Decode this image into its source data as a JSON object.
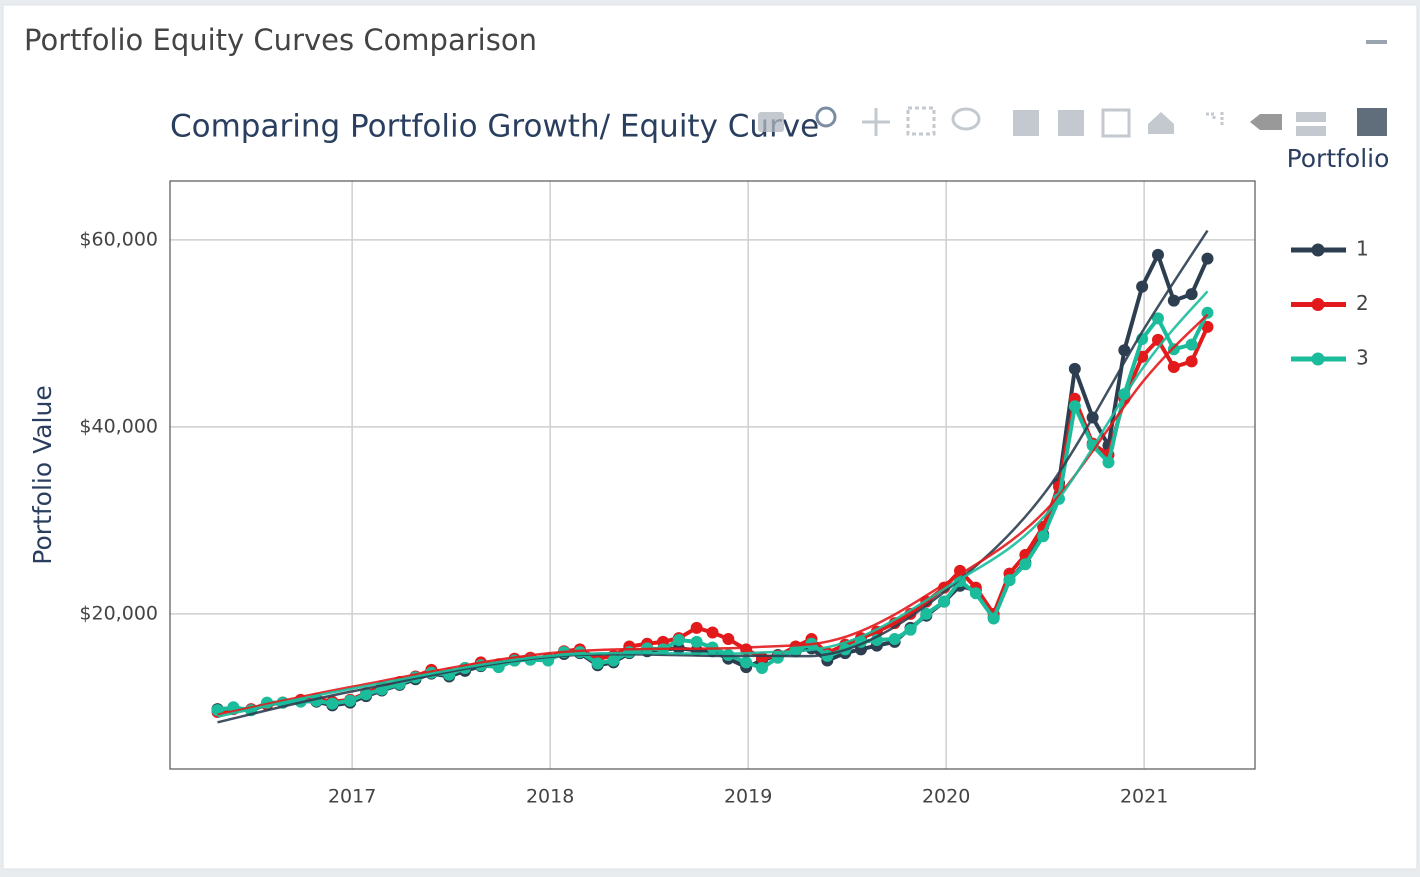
{
  "header": {
    "title": "Portfolio Equity Curves Comparison"
  },
  "chart_data": {
    "type": "line",
    "title": "Comparing Portfolio Growth/ Equity Curve",
    "y_label": "Portfolio Value",
    "legend_title": "Portfolio",
    "legend_position": "right",
    "grid": true,
    "xlim": [
      2016.08,
      2021.56
    ],
    "xticks": [
      2017,
      2018,
      2019,
      2020,
      2021
    ],
    "ylim": [
      3400,
      66300
    ],
    "yticks": [
      {
        "value": 20000,
        "label": "$20,000"
      },
      {
        "value": 40000,
        "label": "$40,000"
      },
      {
        "value": 60000,
        "label": "$60,000"
      }
    ],
    "x": [
      2016.32,
      2016.4,
      2016.49,
      2016.57,
      2016.65,
      2016.74,
      2016.82,
      2016.9,
      2016.99,
      2017.07,
      2017.15,
      2017.24,
      2017.32,
      2017.4,
      2017.49,
      2017.57,
      2017.65,
      2017.74,
      2017.82,
      2017.9,
      2017.99,
      2018.07,
      2018.15,
      2018.24,
      2018.32,
      2018.4,
      2018.49,
      2018.57,
      2018.65,
      2018.74,
      2018.82,
      2018.9,
      2018.99,
      2019.07,
      2019.15,
      2019.24,
      2019.32,
      2019.4,
      2019.49,
      2019.57,
      2019.65,
      2019.74,
      2019.82,
      2019.9,
      2019.99,
      2020.07,
      2020.15,
      2020.24,
      2020.32,
      2020.4,
      2020.49,
      2020.57,
      2020.65,
      2020.74,
      2020.82,
      2020.9,
      2020.99,
      2021.07,
      2021.15,
      2021.24,
      2021.32
    ],
    "trend_x": [
      2016.32,
      2017,
      2018,
      2019,
      2019.5,
      2020,
      2020.5,
      2021,
      2021.32
    ],
    "series": [
      {
        "name": "1",
        "color": "#2c3e50",
        "values": [
          9800,
          9900,
          9700,
          10300,
          10500,
          10700,
          10600,
          10200,
          10500,
          11200,
          11800,
          12400,
          13000,
          13600,
          13300,
          13900,
          14400,
          14500,
          15000,
          15100,
          15200,
          15700,
          15800,
          14500,
          14800,
          15800,
          16000,
          16200,
          16300,
          16100,
          16000,
          15200,
          14300,
          15000,
          15600,
          16000,
          16300,
          15000,
          15800,
          16200,
          16600,
          17000,
          18500,
          19800,
          21300,
          23000,
          22500,
          19600,
          23600,
          25500,
          28500,
          34000,
          46200,
          41000,
          38000,
          48200,
          55000,
          58400,
          53500,
          54200,
          58000
        ],
        "trend": [
          8400,
          11700,
          15400,
          15500,
          16200,
          22500,
          33000,
          50500,
          61000
        ]
      },
      {
        "name": "2",
        "color": "#e31a1c",
        "values": [
          9500,
          9800,
          9800,
          10300,
          10500,
          10800,
          10900,
          10600,
          10800,
          11500,
          12200,
          12700,
          13300,
          14000,
          13600,
          14200,
          14800,
          14600,
          15200,
          15300,
          15200,
          16000,
          16200,
          15200,
          15500,
          16500,
          16800,
          17000,
          17400,
          18500,
          18000,
          17300,
          16200,
          15300,
          15500,
          16500,
          17300,
          15800,
          16700,
          17400,
          18100,
          19000,
          20000,
          21300,
          22800,
          24600,
          22800,
          20000,
          24300,
          26300,
          29300,
          33600,
          43000,
          38200,
          37000,
          43000,
          47500,
          49300,
          46400,
          47000,
          50700
        ],
        "trend": [
          9200,
          12200,
          15800,
          16400,
          17600,
          23300,
          31000,
          45000,
          52000
        ]
      },
      {
        "name": "3",
        "color": "#1abc9c",
        "values": [
          9700,
          10000,
          9700,
          10500,
          10500,
          10600,
          10700,
          10400,
          10700,
          11400,
          11900,
          12500,
          13200,
          13700,
          13500,
          14200,
          14500,
          14300,
          15000,
          15100,
          15000,
          15900,
          15900,
          14700,
          15000,
          15900,
          16300,
          16200,
          17200,
          17000,
          16400,
          15600,
          14800,
          14200,
          15300,
          16100,
          16800,
          15500,
          16200,
          17000,
          17200,
          17300,
          18300,
          20000,
          21300,
          23500,
          22200,
          19500,
          23600,
          25300,
          28300,
          32300,
          42200,
          38000,
          36200,
          43500,
          49400,
          51600,
          48300,
          48800,
          52200
        ],
        "trend": [
          9000,
          12000,
          15500,
          15800,
          17000,
          22800,
          30500,
          46500,
          54500
        ]
      }
    ]
  }
}
